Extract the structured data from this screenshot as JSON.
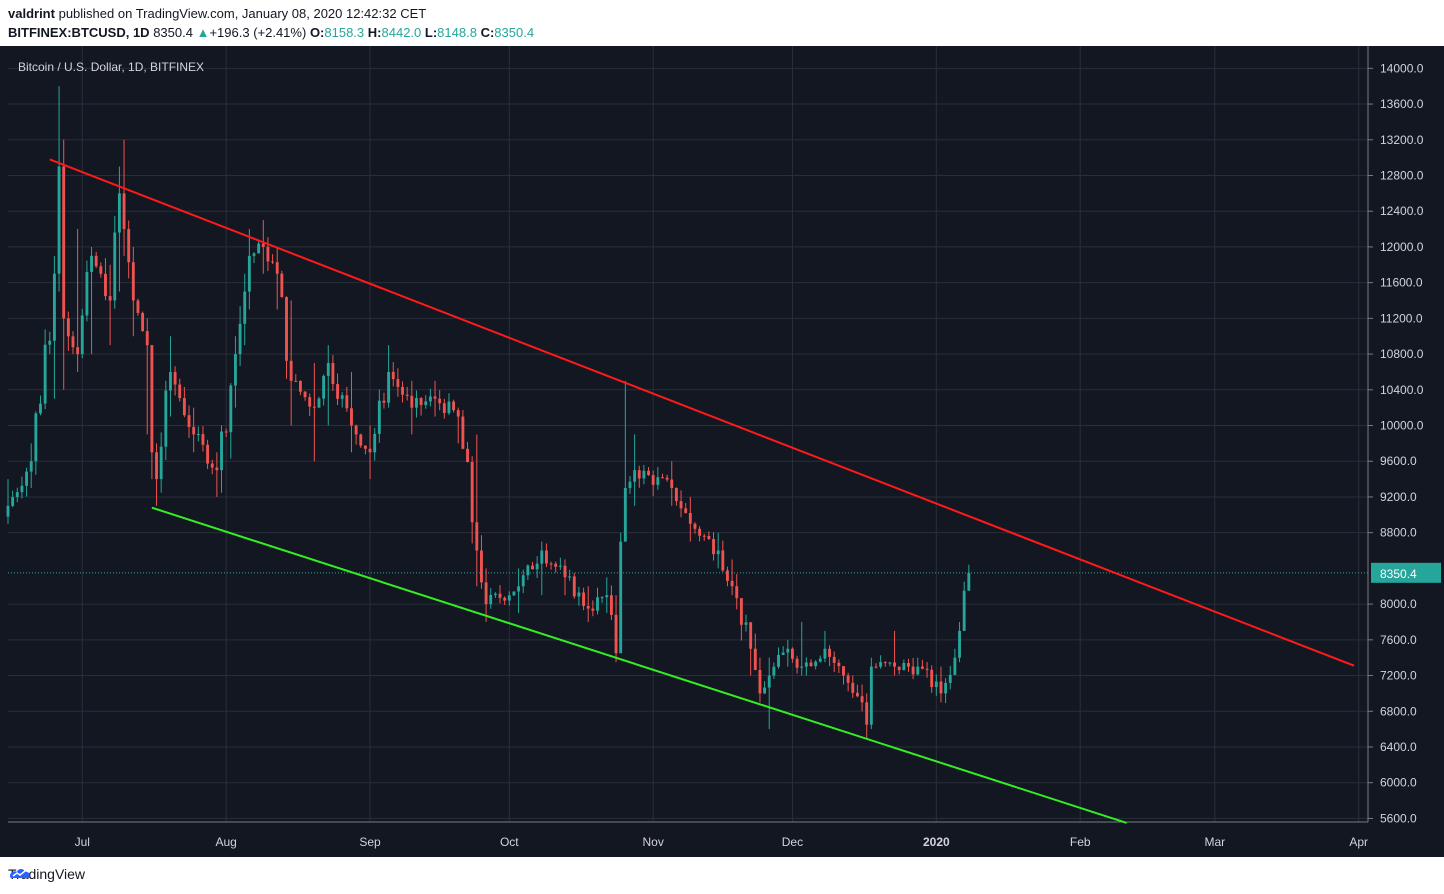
{
  "header": {
    "author": "valdrint",
    "published_text": "published on TradingView.com, January 08, 2020 12:42:32 CET",
    "symbol": "BITFINEX:BTCUSD, 1D",
    "last": "8350.4",
    "change_arrow": "▲",
    "change": "+196.3 (+2.41%)",
    "o_label": "O:",
    "o": "8158.3",
    "h_label": "H:",
    "h": "8442.0",
    "l_label": "L:",
    "l": "8148.8",
    "c_label": "C:",
    "c": "8350.4"
  },
  "footer": {
    "brand": "TradingView",
    "logo_icon": "tradingview-logo-icon"
  },
  "colors": {
    "bg": "#131722",
    "up": "#26a69a",
    "down": "#ef5350",
    "resistance": "#ff1a1a",
    "support": "#33ee22",
    "grid": "#2a2e39",
    "text": "#d1d4dc",
    "last_line": "#26a69a"
  },
  "chart_data": {
    "type": "candlestick",
    "title": "Bitcoin / U.S. Dollar, 1D, BITFINEX",
    "timeframe": "1D",
    "x_range": [
      "2019-06-15",
      "2020-04-03"
    ],
    "y_range": [
      5560,
      14250
    ],
    "y_ticks": [
      "14000.0",
      "13600.0",
      "13200.0",
      "12800.0",
      "12400.0",
      "12000.0",
      "11600.0",
      "11200.0",
      "10800.0",
      "10400.0",
      "10000.0",
      "9600.0",
      "9200.0",
      "8800.0",
      "8000.0",
      "7600.0",
      "7200.0",
      "6800.0",
      "6400.0",
      "6000.0",
      "5600.0"
    ],
    "x_ticks": [
      {
        "label": "Jul",
        "date": "2019-07-01"
      },
      {
        "label": "Aug",
        "date": "2019-08-01"
      },
      {
        "label": "Sep",
        "date": "2019-09-01"
      },
      {
        "label": "Oct",
        "date": "2019-10-01"
      },
      {
        "label": "Nov",
        "date": "2019-11-01"
      },
      {
        "label": "Dec",
        "date": "2019-12-01"
      },
      {
        "label": "2020",
        "date": "2020-01-01"
      },
      {
        "label": "Feb",
        "date": "2020-02-01"
      },
      {
        "label": "Mar",
        "date": "2020-03-01"
      },
      {
        "label": "Apr",
        "date": "2020-04-01"
      }
    ],
    "last_price": "8350.4",
    "close_anchors": [
      {
        "date": "2019-06-15",
        "close": 9100,
        "high": 9400,
        "low": 8900
      },
      {
        "date": "2019-06-20",
        "close": 9600,
        "high": 9800,
        "low": 9300
      },
      {
        "date": "2019-06-25",
        "close": 11700,
        "high": 11900,
        "low": 10300
      },
      {
        "date": "2019-06-26",
        "close": 12900,
        "high": 13800,
        "low": 11500
      },
      {
        "date": "2019-06-27",
        "close": 11200,
        "high": 13200,
        "low": 10400
      },
      {
        "date": "2019-06-30",
        "close": 10800,
        "high": 12200,
        "low": 10600
      },
      {
        "date": "2019-07-03",
        "close": 11900,
        "high": 12000,
        "low": 10800
      },
      {
        "date": "2019-07-07",
        "close": 11400,
        "high": 11800,
        "low": 10900
      },
      {
        "date": "2019-07-09",
        "close": 12600,
        "high": 12900,
        "low": 11500
      },
      {
        "date": "2019-07-10",
        "close": 12200,
        "high": 13200,
        "low": 11900
      },
      {
        "date": "2019-07-12",
        "close": 11400,
        "high": 12000,
        "low": 11000
      },
      {
        "date": "2019-07-15",
        "close": 10900,
        "high": 11200,
        "low": 9900
      },
      {
        "date": "2019-07-16",
        "close": 9700,
        "high": 10900,
        "low": 9400
      },
      {
        "date": "2019-07-17",
        "close": 9400,
        "high": 9800,
        "low": 9100
      },
      {
        "date": "2019-07-20",
        "close": 10600,
        "high": 11000,
        "low": 10100
      },
      {
        "date": "2019-07-25",
        "close": 9900,
        "high": 10200,
        "low": 9700
      },
      {
        "date": "2019-07-30",
        "close": 9500,
        "high": 9700,
        "low": 9200
      },
      {
        "date": "2019-08-03",
        "close": 10800,
        "high": 11000,
        "low": 10200
      },
      {
        "date": "2019-08-05",
        "close": 11500,
        "high": 11700,
        "low": 10900
      },
      {
        "date": "2019-08-06",
        "close": 11900,
        "high": 12200,
        "low": 11300
      },
      {
        "date": "2019-08-09",
        "close": 12000,
        "high": 12300,
        "low": 11700
      },
      {
        "date": "2019-08-12",
        "close": 11700,
        "high": 12000,
        "low": 11300
      },
      {
        "date": "2019-08-15",
        "close": 10500,
        "high": 11400,
        "low": 10000
      },
      {
        "date": "2019-08-20",
        "close": 10200,
        "high": 10700,
        "low": 9600
      },
      {
        "date": "2019-08-23",
        "close": 10700,
        "high": 10900,
        "low": 10000
      },
      {
        "date": "2019-08-28",
        "close": 10000,
        "high": 10600,
        "low": 9700
      },
      {
        "date": "2019-09-01",
        "close": 9700,
        "high": 10000,
        "low": 9400
      },
      {
        "date": "2019-09-05",
        "close": 10600,
        "high": 10900,
        "low": 10200
      },
      {
        "date": "2019-09-10",
        "close": 10200,
        "high": 10500,
        "low": 9900
      },
      {
        "date": "2019-09-15",
        "close": 10300,
        "high": 10500,
        "low": 10100
      },
      {
        "date": "2019-09-20",
        "close": 10100,
        "high": 10200,
        "low": 9800
      },
      {
        "date": "2019-09-24",
        "close": 8600,
        "high": 9900,
        "low": 8200
      },
      {
        "date": "2019-09-26",
        "close": 8000,
        "high": 8400,
        "low": 7800
      },
      {
        "date": "2019-10-03",
        "close": 8200,
        "high": 8400,
        "low": 7900
      },
      {
        "date": "2019-10-08",
        "close": 8600,
        "high": 8700,
        "low": 8100
      },
      {
        "date": "2019-10-13",
        "close": 8300,
        "high": 8500,
        "low": 8100
      },
      {
        "date": "2019-10-18",
        "close": 7950,
        "high": 8200,
        "low": 7800
      },
      {
        "date": "2019-10-22",
        "close": 8100,
        "high": 8300,
        "low": 7900
      },
      {
        "date": "2019-10-24",
        "close": 7450,
        "high": 8100,
        "low": 7350
      },
      {
        "date": "2019-10-25",
        "close": 8700,
        "high": 8800,
        "low": 7450
      },
      {
        "date": "2019-10-26",
        "close": 9300,
        "high": 10500,
        "low": 8700
      },
      {
        "date": "2019-10-28",
        "close": 9500,
        "high": 9900,
        "low": 9100
      },
      {
        "date": "2019-11-05",
        "close": 9300,
        "high": 9600,
        "low": 9100
      },
      {
        "date": "2019-11-09",
        "close": 8900,
        "high": 9200,
        "low": 8700
      },
      {
        "date": "2019-11-15",
        "close": 8600,
        "high": 8800,
        "low": 8400
      },
      {
        "date": "2019-11-18",
        "close": 8200,
        "high": 8500,
        "low": 8100
      },
      {
        "date": "2019-11-22",
        "close": 7500,
        "high": 7800,
        "low": 7200
      },
      {
        "date": "2019-11-24",
        "close": 7000,
        "high": 7400,
        "low": 6900
      },
      {
        "date": "2019-11-26",
        "close": 7200,
        "high": 7400,
        "low": 6600
      },
      {
        "date": "2019-11-30",
        "close": 7500,
        "high": 7600,
        "low": 7300
      },
      {
        "date": "2019-12-03",
        "close": 7300,
        "high": 7800,
        "low": 7200
      },
      {
        "date": "2019-12-08",
        "close": 7500,
        "high": 7700,
        "low": 7350
      },
      {
        "date": "2019-12-12",
        "close": 7200,
        "high": 7300,
        "low": 7100
      },
      {
        "date": "2019-12-16",
        "close": 6900,
        "high": 7100,
        "low": 6800
      },
      {
        "date": "2019-12-17",
        "close": 6650,
        "high": 7000,
        "low": 6500
      },
      {
        "date": "2019-12-18",
        "close": 7300,
        "high": 7400,
        "low": 6600
      },
      {
        "date": "2019-12-23",
        "close": 7300,
        "high": 7700,
        "low": 7200
      },
      {
        "date": "2019-12-28",
        "close": 7300,
        "high": 7400,
        "low": 7200
      },
      {
        "date": "2020-01-02",
        "close": 7000,
        "high": 7300,
        "low": 6900
      },
      {
        "date": "2020-01-05",
        "close": 7400,
        "high": 7500,
        "low": 7300
      },
      {
        "date": "2020-01-06",
        "close": 7700,
        "high": 7800,
        "low": 7350
      },
      {
        "date": "2020-01-07",
        "close": 8150,
        "high": 8250,
        "low": 7700
      },
      {
        "date": "2020-01-08",
        "close": 8350.4,
        "high": 8442.0,
        "low": 8148.8
      }
    ],
    "trendlines": [
      {
        "name": "resistance",
        "color": "#ff1a1a",
        "from": {
          "date": "2019-06-24",
          "price": 12980
        },
        "to": {
          "date": "2020-03-31",
          "price": 7310
        }
      },
      {
        "name": "support",
        "color": "#33ee22",
        "from": {
          "date": "2019-07-16",
          "price": 9080
        },
        "to": {
          "date": "2020-02-11",
          "price": 5550
        }
      }
    ]
  }
}
